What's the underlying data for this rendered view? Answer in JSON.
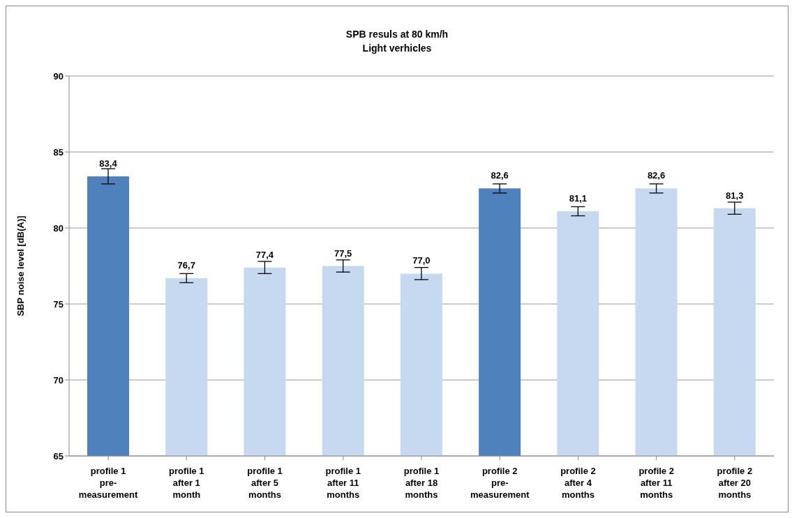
{
  "chart_data": {
    "type": "bar",
    "title": "SPB resuls at 80 km/h\nLight verhicles",
    "ylabel": "SBP noise level [dB(A)]",
    "categories": [
      "profile 1\npre-\nmeasurement",
      "profile 1\nafter 1\nmonth",
      "profile 1\nafter 5\nmonths",
      "profile 1\nafter 11\nmonths",
      "profile 1\nafter 18\nmonths",
      "profile 2\npre-\nmeasurement",
      "profile 2\nafter 4\nmonths",
      "profile 2\nafter 11\nmonths",
      "profile 2\nafter 20\nmonths"
    ],
    "values": [
      83.4,
      76.7,
      77.4,
      77.5,
      77.0,
      82.6,
      81.1,
      82.6,
      81.3
    ],
    "errors": [
      0.5,
      0.3,
      0.4,
      0.4,
      0.4,
      0.3,
      0.3,
      0.3,
      0.4
    ],
    "value_labels": [
      "83,4",
      "76,7",
      "77,4",
      "77,5",
      "77,0",
      "82,6",
      "81,1",
      "82,6",
      "81,3"
    ],
    "colors": [
      "#4f81bd",
      "#c6d9f1",
      "#c6d9f1",
      "#c6d9f1",
      "#c6d9f1",
      "#4f81bd",
      "#c6d9f1",
      "#c6d9f1",
      "#c6d9f1"
    ],
    "ylim": [
      65,
      90
    ],
    "yticks": [
      65,
      70,
      75,
      80,
      85,
      90
    ],
    "grid": "y",
    "legend": false
  }
}
